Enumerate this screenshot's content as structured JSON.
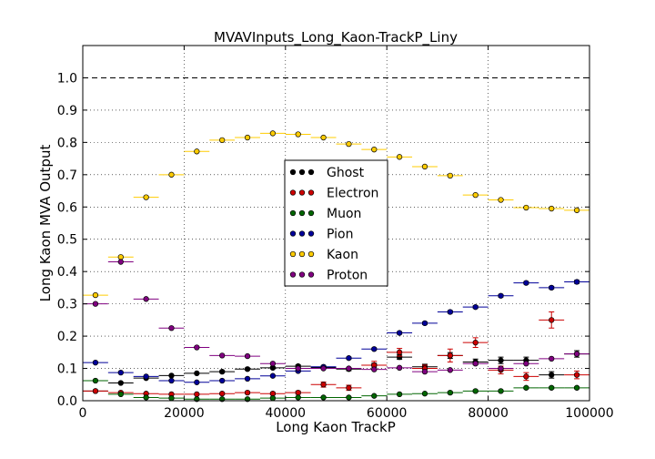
{
  "chart_data": {
    "type": "scatter",
    "title": "MVAVInputs_Long_Kaon-TrackP_Liny",
    "xlabel": "Long Kaon TrackP",
    "ylabel": "Long Kaon MVA Output",
    "xlim": [
      0,
      100000
    ],
    "ylim": [
      0,
      1.1
    ],
    "x_ticks": [
      "0",
      "20000",
      "40000",
      "60000",
      "80000",
      "100000"
    ],
    "y_ticks": [
      "0.0",
      "0.1",
      "0.2",
      "0.3",
      "0.4",
      "0.5",
      "0.6",
      "0.7",
      "0.8",
      "0.9",
      "1.0"
    ],
    "grid": true,
    "reference_line": 1.0,
    "legend_position": "center",
    "bin_width": 5000,
    "x": [
      2500,
      7500,
      12500,
      17500,
      22500,
      27500,
      32500,
      37500,
      42500,
      47500,
      52500,
      57500,
      62500,
      67500,
      72500,
      77500,
      82500,
      87500,
      92500,
      97500
    ],
    "series": [
      {
        "name": "Ghost",
        "color": "#000000",
        "values": [
          0.03,
          0.055,
          0.07,
          0.078,
          0.085,
          0.09,
          0.098,
          0.102,
          0.107,
          0.103,
          0.098,
          0.11,
          0.135,
          0.105,
          0.14,
          0.12,
          0.125,
          0.125,
          0.08,
          0.145
        ],
        "errors": [
          0.002,
          0.002,
          0.002,
          0.002,
          0.002,
          0.003,
          0.003,
          0.003,
          0.004,
          0.004,
          0.005,
          0.006,
          0.007,
          0.008,
          0.009,
          0.009,
          0.01,
          0.01,
          0.01,
          0.01
        ]
      },
      {
        "name": "Electron",
        "color": "#cc0000",
        "values": [
          0.03,
          0.025,
          0.022,
          0.02,
          0.02,
          0.022,
          0.025,
          0.022,
          0.025,
          0.05,
          0.04,
          0.11,
          0.15,
          0.1,
          0.14,
          0.18,
          0.095,
          0.075,
          0.25,
          0.08
        ],
        "errors": [
          0.002,
          0.002,
          0.002,
          0.002,
          0.002,
          0.003,
          0.003,
          0.004,
          0.005,
          0.008,
          0.008,
          0.012,
          0.012,
          0.01,
          0.02,
          0.015,
          0.012,
          0.012,
          0.025,
          0.012
        ]
      },
      {
        "name": "Muon",
        "color": "#006600",
        "values": [
          0.062,
          0.02,
          0.01,
          0.008,
          0.005,
          0.005,
          0.005,
          0.008,
          0.01,
          0.01,
          0.01,
          0.015,
          0.02,
          0.022,
          0.025,
          0.03,
          0.03,
          0.04,
          0.04,
          0.04
        ],
        "errors": [
          0.002,
          0.002,
          0.001,
          0.001,
          0.001,
          0.001,
          0.001,
          0.001,
          0.001,
          0.001,
          0.002,
          0.002,
          0.002,
          0.002,
          0.003,
          0.003,
          0.003,
          0.003,
          0.003,
          0.003
        ]
      },
      {
        "name": "Pion",
        "color": "#000099",
        "values": [
          0.118,
          0.087,
          0.075,
          0.062,
          0.057,
          0.062,
          0.068,
          0.077,
          0.092,
          0.105,
          0.132,
          0.16,
          0.21,
          0.24,
          0.275,
          0.29,
          0.325,
          0.365,
          0.35,
          0.368
        ],
        "errors": [
          0.002,
          0.002,
          0.002,
          0.002,
          0.002,
          0.002,
          0.002,
          0.002,
          0.003,
          0.003,
          0.003,
          0.003,
          0.004,
          0.004,
          0.004,
          0.004,
          0.004,
          0.004,
          0.004,
          0.005
        ]
      },
      {
        "name": "Kaon",
        "color": "#ffcc00",
        "values": [
          0.327,
          0.445,
          0.63,
          0.7,
          0.772,
          0.807,
          0.815,
          0.828,
          0.825,
          0.815,
          0.795,
          0.778,
          0.755,
          0.725,
          0.697,
          0.637,
          0.622,
          0.598,
          0.595,
          0.59
        ],
        "errors": [
          0.002,
          0.002,
          0.002,
          0.002,
          0.002,
          0.002,
          0.002,
          0.002,
          0.002,
          0.002,
          0.002,
          0.002,
          0.002,
          0.002,
          0.002,
          0.002,
          0.002,
          0.002,
          0.002,
          0.002
        ]
      },
      {
        "name": "Proton",
        "color": "#800080",
        "values": [
          0.3,
          0.43,
          0.315,
          0.225,
          0.165,
          0.14,
          0.138,
          0.115,
          0.1,
          0.1,
          0.1,
          0.097,
          0.102,
          0.09,
          0.095,
          0.115,
          0.1,
          0.115,
          0.13,
          0.145
        ],
        "errors": [
          0.002,
          0.002,
          0.002,
          0.002,
          0.002,
          0.002,
          0.002,
          0.002,
          0.002,
          0.002,
          0.002,
          0.002,
          0.002,
          0.002,
          0.002,
          0.002,
          0.002,
          0.002,
          0.002,
          0.002
        ]
      }
    ]
  }
}
